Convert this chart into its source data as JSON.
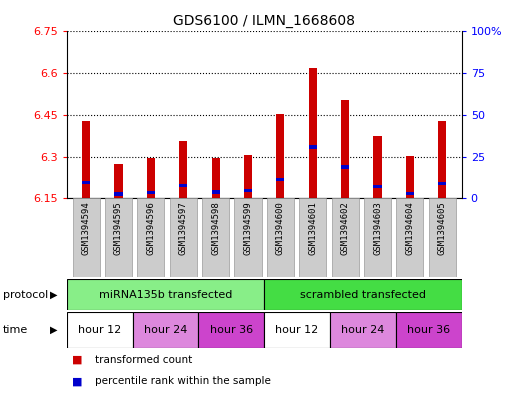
{
  "title": "GDS6100 / ILMN_1668608",
  "samples": [
    "GSM1394594",
    "GSM1394595",
    "GSM1394596",
    "GSM1394597",
    "GSM1394598",
    "GSM1394599",
    "GSM1394600",
    "GSM1394601",
    "GSM1394602",
    "GSM1394603",
    "GSM1394604",
    "GSM1394605"
  ],
  "bar_values": [
    6.43,
    6.275,
    6.295,
    6.355,
    6.295,
    6.305,
    6.455,
    6.62,
    6.505,
    6.375,
    6.302,
    6.43
  ],
  "bar_base": 6.15,
  "blue_fractions": [
    0.18,
    0.085,
    0.1,
    0.2,
    0.12,
    0.14,
    0.2,
    0.38,
    0.3,
    0.165,
    0.075,
    0.17
  ],
  "bar_color": "#cc0000",
  "blue_color": "#0000cc",
  "ylim_left": [
    6.15,
    6.75
  ],
  "ylim_right": [
    0,
    100
  ],
  "yticks_left": [
    6.15,
    6.3,
    6.45,
    6.6,
    6.75
  ],
  "yticks_right": [
    0,
    25,
    50,
    75,
    100
  ],
  "ytick_labels_left": [
    "6.15",
    "6.3",
    "6.45",
    "6.6",
    "6.75"
  ],
  "ytick_labels_right": [
    "0",
    "25",
    "50",
    "75",
    "100%"
  ],
  "grid_lines": [
    6.3,
    6.45,
    6.6,
    6.75
  ],
  "protocols": [
    {
      "label": "miRNA135b transfected",
      "start": 0,
      "end": 6,
      "color": "#88ee88"
    },
    {
      "label": "scrambled transfected",
      "start": 6,
      "end": 12,
      "color": "#44dd44"
    }
  ],
  "times": [
    {
      "label": "hour 12",
      "start": 0,
      "end": 2,
      "color": "#ffffff"
    },
    {
      "label": "hour 24",
      "start": 2,
      "end": 4,
      "color": "#dd88dd"
    },
    {
      "label": "hour 36",
      "start": 4,
      "end": 6,
      "color": "#cc44cc"
    },
    {
      "label": "hour 12",
      "start": 6,
      "end": 8,
      "color": "#ffffff"
    },
    {
      "label": "hour 24",
      "start": 8,
      "end": 10,
      "color": "#dd88dd"
    },
    {
      "label": "hour 36",
      "start": 10,
      "end": 12,
      "color": "#cc44cc"
    }
  ],
  "protocol_label": "protocol",
  "time_label": "time",
  "legend_items": [
    {
      "color": "#cc0000",
      "label": "transformed count"
    },
    {
      "color": "#0000cc",
      "label": "percentile rank within the sample"
    }
  ],
  "bar_width": 0.25,
  "fig_width": 5.13,
  "fig_height": 3.93,
  "bg_color": "#ffffff",
  "sample_bg": "#cccccc"
}
